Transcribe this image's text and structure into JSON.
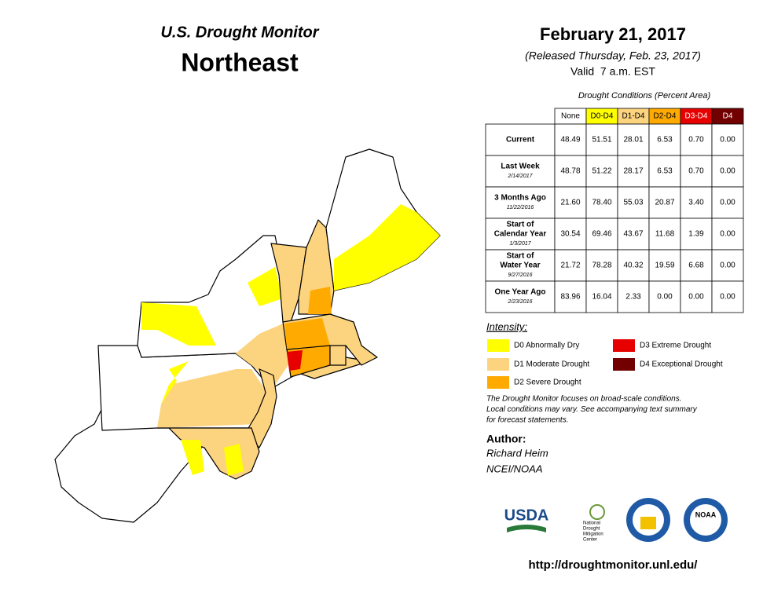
{
  "header": {
    "title": "U.S. Drought Monitor",
    "region": "Northeast",
    "date": "February 21, 2017",
    "released": "(Released Thursday, Feb. 23, 2017)",
    "valid": "Valid  7 a.m. EST"
  },
  "table": {
    "caption": "Drought Conditions (Percent Area)",
    "columns": [
      {
        "label": "None",
        "color": "#ffffff",
        "text_color": "#000000"
      },
      {
        "label": "D0-D4",
        "color": "#ffff00",
        "text_color": "#000000"
      },
      {
        "label": "D1-D4",
        "color": "#fcd37f",
        "text_color": "#000000"
      },
      {
        "label": "D2-D4",
        "color": "#ffaa00",
        "text_color": "#000000"
      },
      {
        "label": "D3-D4",
        "color": "#e60000",
        "text_color": "#ffffff"
      },
      {
        "label": "D4",
        "color": "#730000",
        "text_color": "#ffffff"
      }
    ],
    "rows": [
      {
        "label": [
          "Current"
        ],
        "values": [
          "48.49",
          "51.51",
          "28.01",
          "6.53",
          "0.70",
          "0.00"
        ]
      },
      {
        "label": [
          "Last Week"
        ],
        "date": "2/14/2017",
        "values": [
          "48.78",
          "51.22",
          "28.17",
          "6.53",
          "0.70",
          "0.00"
        ]
      },
      {
        "label": [
          "3 Months Ago"
        ],
        "date": "11/22/2016",
        "values": [
          "21.60",
          "78.40",
          "55.03",
          "20.87",
          "3.40",
          "0.00"
        ]
      },
      {
        "label": [
          "Start of",
          "Calendar Year"
        ],
        "date": "1/3/2017",
        "values": [
          "30.54",
          "69.46",
          "43.67",
          "11.68",
          "1.39",
          "0.00"
        ]
      },
      {
        "label": [
          "Start of",
          "Water Year"
        ],
        "date": "9/27/2016",
        "values": [
          "21.72",
          "78.28",
          "40.32",
          "19.59",
          "6.68",
          "0.00"
        ]
      },
      {
        "label": [
          "One Year Ago"
        ],
        "date": "2/23/2016",
        "values": [
          "83.96",
          "16.04",
          "2.33",
          "0.00",
          "0.00",
          "0.00"
        ]
      }
    ]
  },
  "legend": {
    "title": "Intensity:",
    "items": [
      {
        "label": "D0 Abnormally Dry",
        "color": "#ffff00"
      },
      {
        "label": "D1 Moderate Drought",
        "color": "#fcd37f"
      },
      {
        "label": "D2 Severe Drought",
        "color": "#ffaa00"
      },
      {
        "label": "D3 Extreme Drought",
        "color": "#e60000"
      },
      {
        "label": "D4 Exceptional Drought",
        "color": "#730000"
      }
    ]
  },
  "note": [
    "The Drought Monitor focuses on broad-scale conditions.",
    "Local conditions may vary. See accompanying text summary",
    "for forecast statements."
  ],
  "author": {
    "heading": "Author:",
    "name": "Richard Heim",
    "org": "NCEI/NOAA"
  },
  "logos": {
    "usda": "USDA",
    "ndmc": [
      "National",
      "Drought",
      "Mitigation",
      "Center"
    ],
    "noaa": "NOAA"
  },
  "url": "http://droughtmonitor.unl.edu/"
}
